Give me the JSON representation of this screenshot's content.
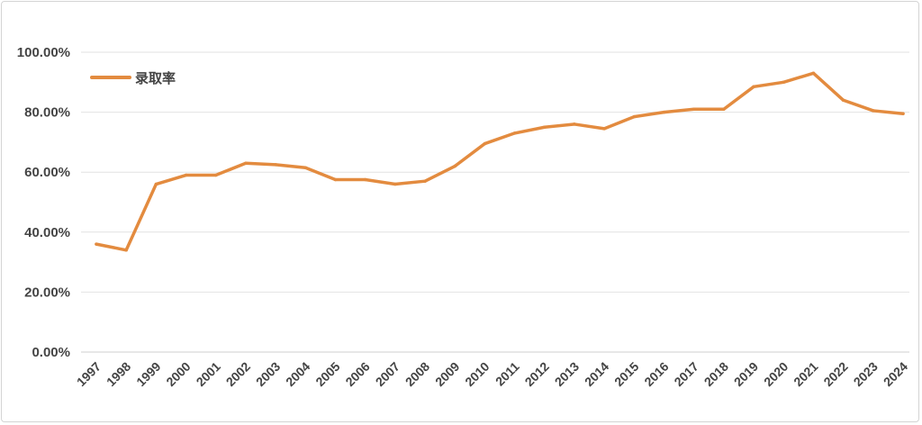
{
  "chart_data": {
    "type": "line",
    "x": [
      "1997",
      "1998",
      "1999",
      "2000",
      "2001",
      "2002",
      "2003",
      "2004",
      "2005",
      "2006",
      "2007",
      "2008",
      "2009",
      "2010",
      "2011",
      "2012",
      "2013",
      "2014",
      "2015",
      "2016",
      "2017",
      "2018",
      "2019",
      "2020",
      "2021",
      "2022",
      "2023",
      "2024"
    ],
    "series": [
      {
        "name": "录取率",
        "color": "#e38b3f",
        "values": [
          36.0,
          34.0,
          56.0,
          59.0,
          59.0,
          63.0,
          62.5,
          61.5,
          57.5,
          57.5,
          56.0,
          57.0,
          62.0,
          69.5,
          73.0,
          75.0,
          76.0,
          74.5,
          78.5,
          80.0,
          81.0,
          81.0,
          88.5,
          90.0,
          93.0,
          84.0,
          80.5,
          79.5
        ]
      }
    ],
    "ylim": [
      0,
      100
    ],
    "yticks": [
      "0.00%",
      "20.00%",
      "40.00%",
      "60.00%",
      "80.00%",
      "100.00%"
    ],
    "grid": true,
    "legend_position": "top-left"
  }
}
